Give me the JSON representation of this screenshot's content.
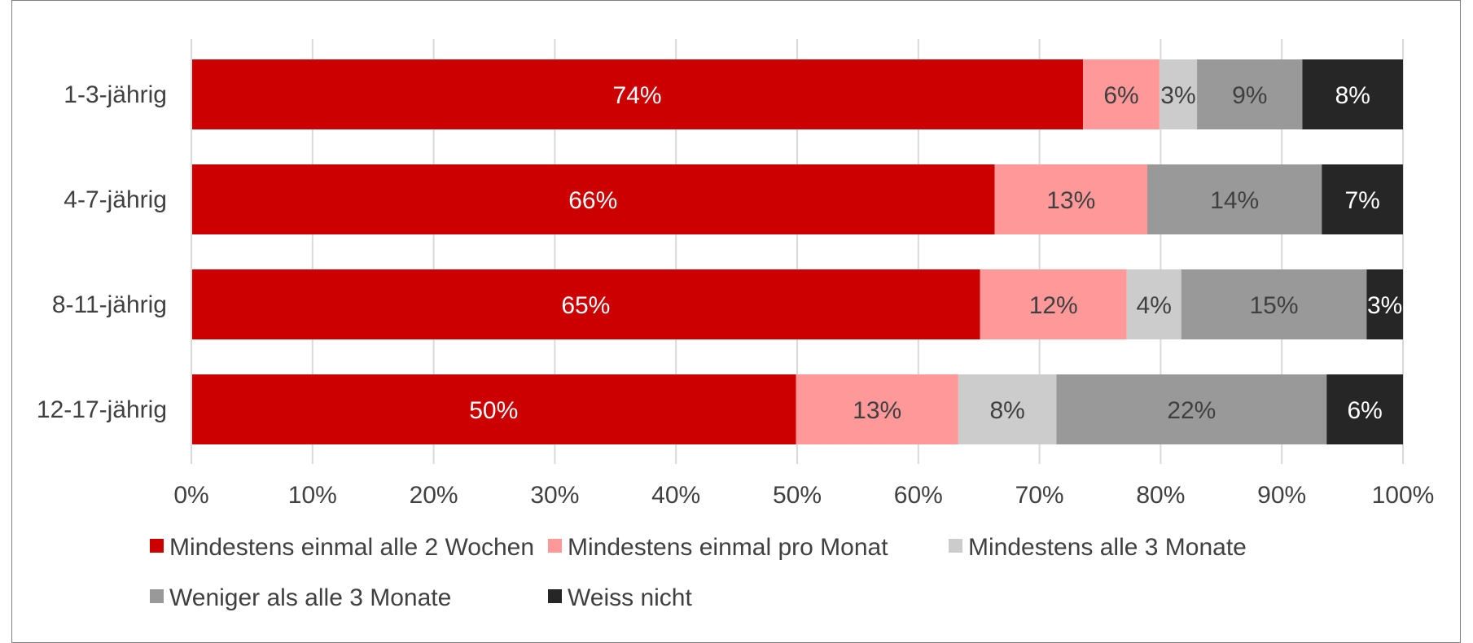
{
  "chart_data": {
    "type": "bar",
    "orientation": "horizontal",
    "stacked": true,
    "title": "",
    "xlabel": "",
    "ylabel": "",
    "xlim": [
      0,
      100
    ],
    "x_ticks": [
      0,
      10,
      20,
      30,
      40,
      50,
      60,
      70,
      80,
      90,
      100
    ],
    "x_tick_labels": [
      "0%",
      "10%",
      "20%",
      "30%",
      "40%",
      "50%",
      "60%",
      "70%",
      "80%",
      "90%",
      "100%"
    ],
    "grid": "vertical",
    "legend_position": "bottom",
    "categories": [
      "1-3-jährig",
      "4-7-jährig",
      "8-11-jährig",
      "12-17-jährig"
    ],
    "series": [
      {
        "name": "Mindestens einmal alle 2 Wochen",
        "color": "#cc0000",
        "text_color": "#ffffff",
        "values": [
          73.6,
          66.3,
          65.1,
          49.9
        ],
        "labels": [
          "74%",
          "66%",
          "65%",
          "50%"
        ]
      },
      {
        "name": "Mindestens einmal pro Monat",
        "color": "#ff9999",
        "text_color": "#404040",
        "values": [
          6.3,
          12.6,
          12.1,
          13.4
        ],
        "labels": [
          "6%",
          "13%",
          "12%",
          "13%"
        ]
      },
      {
        "name": "Mindestens alle 3 Monate",
        "color": "#cccccc",
        "text_color": "#404040",
        "values": [
          3.1,
          0,
          4.5,
          8.1
        ],
        "labels": [
          "3%",
          "",
          "4%",
          "8%"
        ]
      },
      {
        "name": "Weniger als alle 3 Monate",
        "color": "#999999",
        "text_color": "#404040",
        "values": [
          8.7,
          14.4,
          15.3,
          22.3
        ],
        "labels": [
          "9%",
          "14%",
          "15%",
          "22%"
        ]
      },
      {
        "name": "Weiss nicht",
        "color": "#262626",
        "text_color": "#ffffff",
        "values": [
          8.3,
          6.7,
          3.0,
          6.3
        ],
        "labels": [
          "8%",
          "7%",
          "3%",
          "6%"
        ]
      }
    ]
  }
}
